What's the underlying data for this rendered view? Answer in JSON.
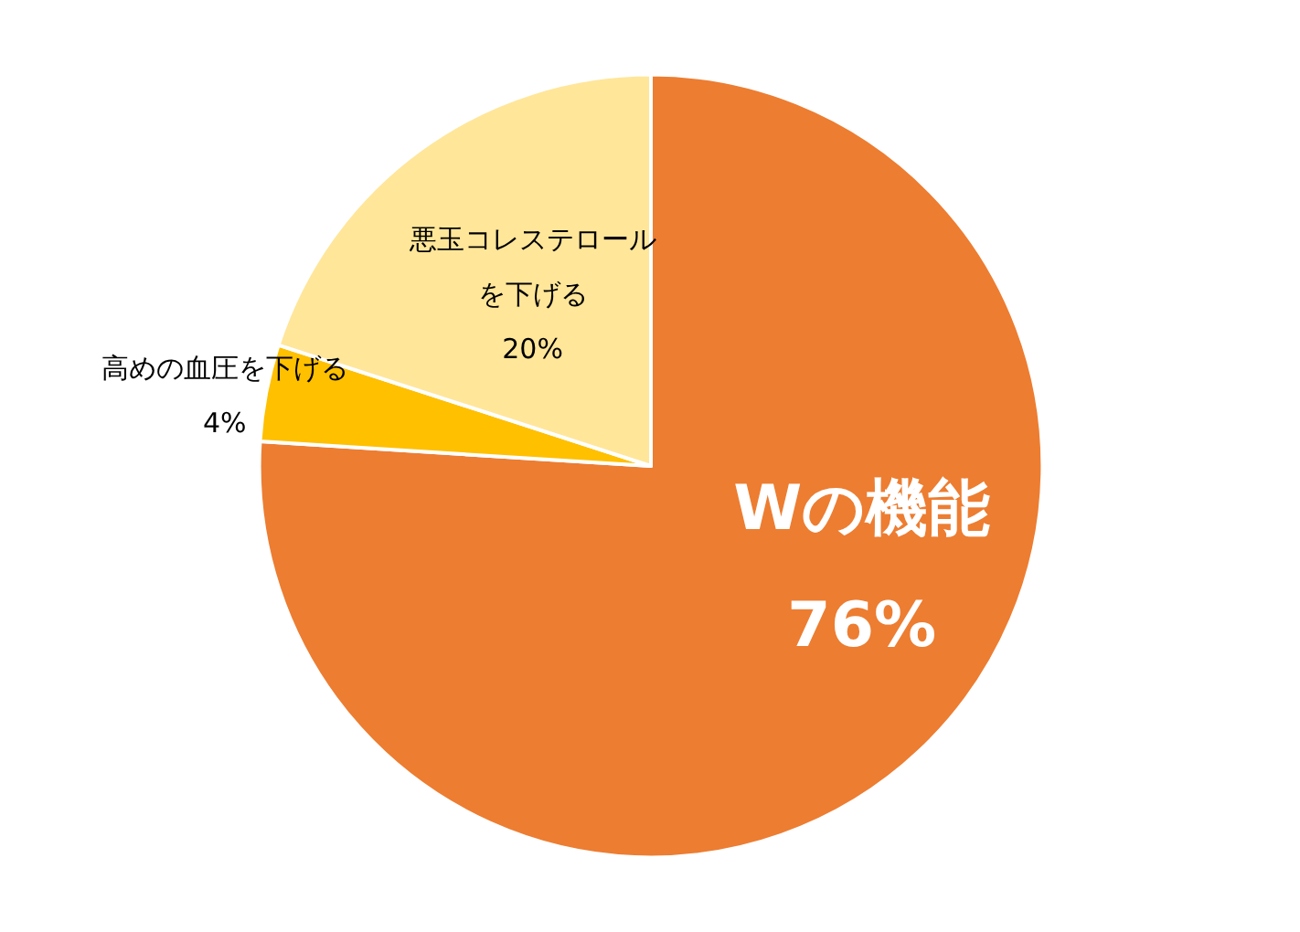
{
  "chart_data": {
    "type": "pie",
    "categories": [
      "Wの機能",
      "高めの血圧を下げる",
      "悪玉コレステロールを下げる"
    ],
    "values": [
      76,
      4,
      20
    ],
    "value_labels": [
      "76%",
      "4%",
      "20%"
    ],
    "colors": [
      "#ed7d31",
      "#ffc000",
      "#ffe699"
    ],
    "legend": false
  }
}
